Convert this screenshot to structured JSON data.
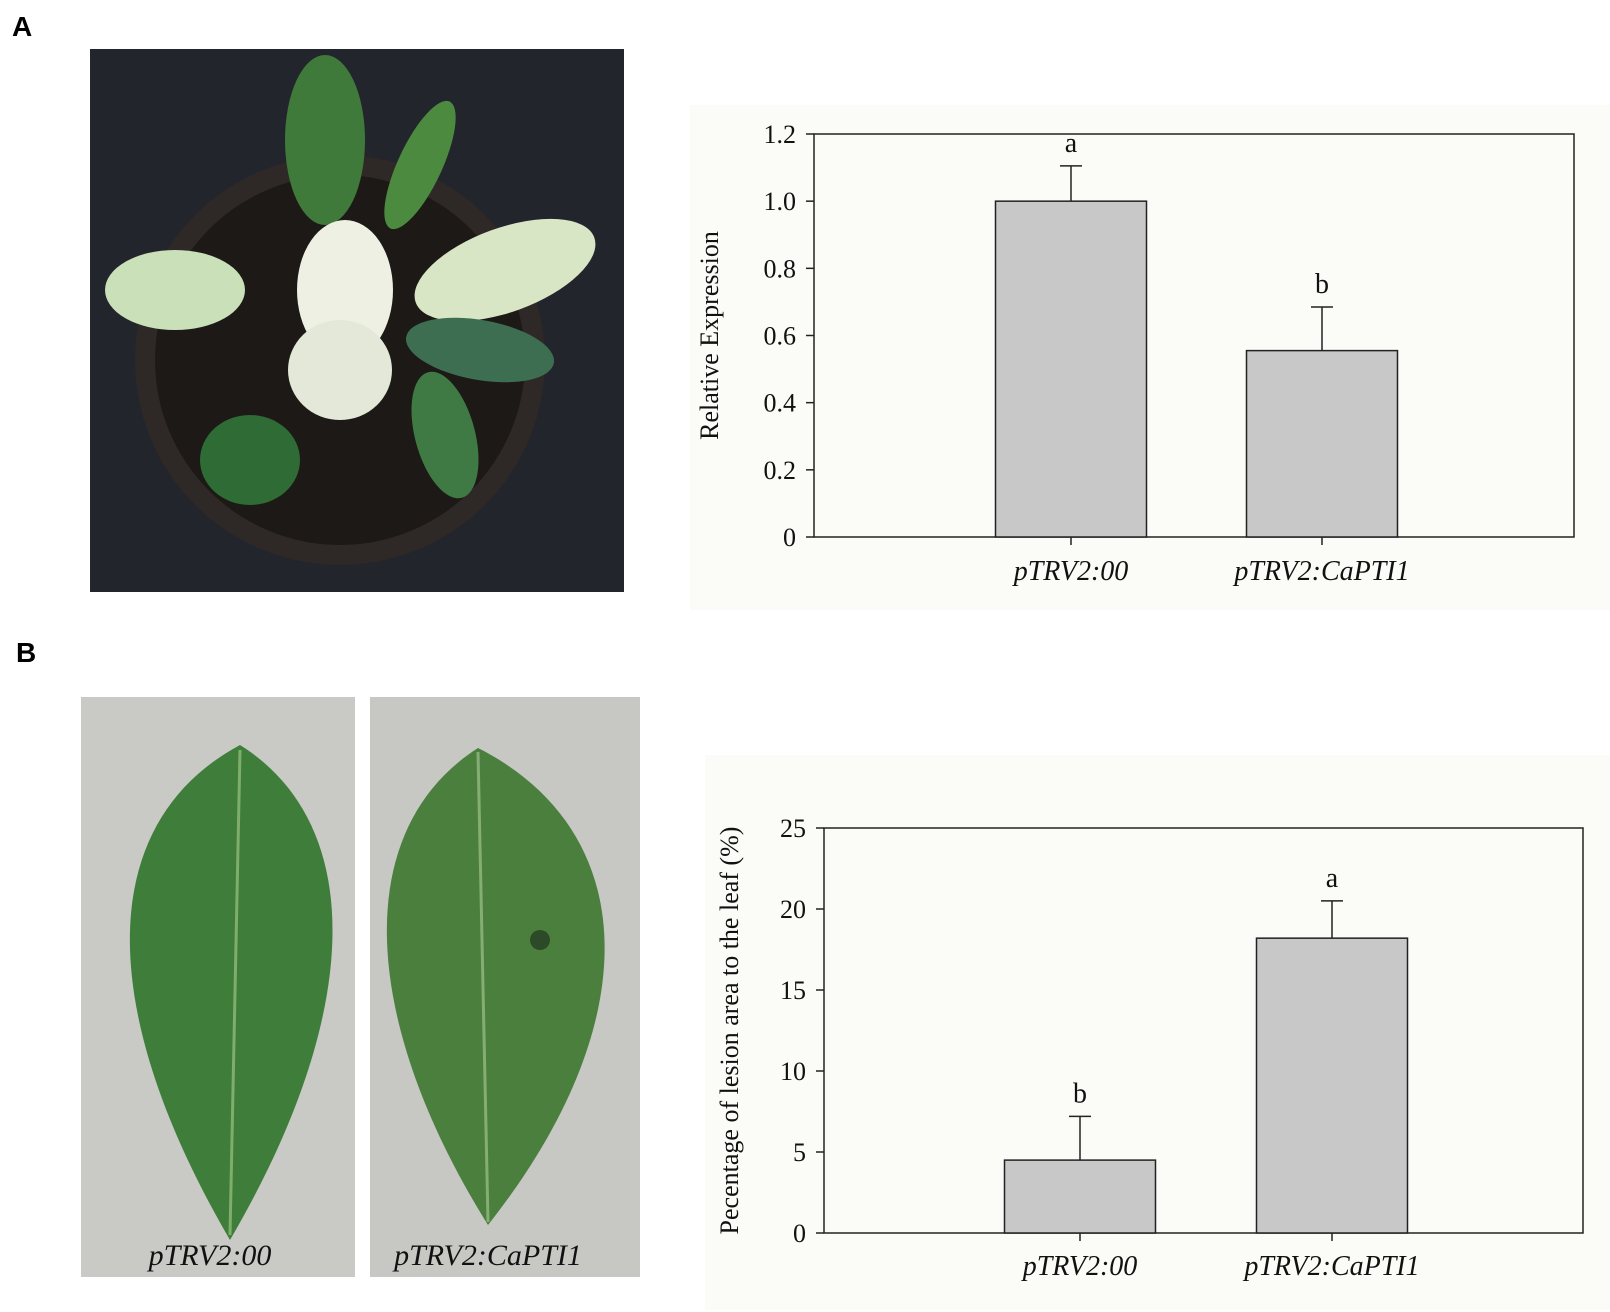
{
  "panel_labels": [
    "A",
    "B"
  ],
  "photo_captions": [
    "pTRV2:00",
    "pTRV2:CaPTI1"
  ],
  "chart_data": [
    {
      "type": "bar",
      "ylabel": "Relative Expression",
      "categories": [
        "pTRV2:00",
        "pTRV2:CaPTI1"
      ],
      "values": [
        1.0,
        0.555
      ],
      "errors": [
        0.105,
        0.13
      ],
      "annotations": [
        "a",
        "b"
      ],
      "color": "#c8c8c8",
      "ylim": [
        0,
        1.2
      ],
      "yticks": [
        0,
        0.2,
        0.4,
        0.6,
        0.8,
        {
          "value": 1,
          "label": "1.0"
        },
        1.2
      ]
    },
    {
      "type": "bar",
      "ylabel": "Pecentage of lesion area to the leaf (%)",
      "categories": [
        "pTRV2:00",
        "pTRV2:CaPTI1"
      ],
      "values": [
        4.5,
        18.2
      ],
      "errors": [
        2.7,
        2.3
      ],
      "annotations": [
        "b",
        "a"
      ],
      "color": "#c8c8c8",
      "ylim": [
        0,
        25
      ],
      "yticks": [
        0,
        5,
        10,
        15,
        20,
        25
      ]
    }
  ]
}
